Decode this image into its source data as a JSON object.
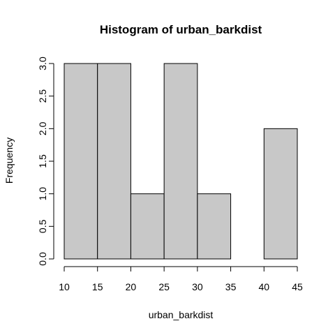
{
  "chart_data": {
    "type": "bar",
    "title": "Histogram of urban_barkdist",
    "xlabel": "urban_barkdist",
    "ylabel": "Frequency",
    "bins": [
      {
        "start": 10,
        "end": 15,
        "count": 3
      },
      {
        "start": 15,
        "end": 20,
        "count": 3
      },
      {
        "start": 20,
        "end": 25,
        "count": 1
      },
      {
        "start": 25,
        "end": 30,
        "count": 3
      },
      {
        "start": 30,
        "end": 35,
        "count": 1
      },
      {
        "start": 35,
        "end": 40,
        "count": 0
      },
      {
        "start": 40,
        "end": 45,
        "count": 2
      }
    ],
    "xlim": [
      10,
      45
    ],
    "ylim": [
      0,
      3
    ],
    "x_ticks": [
      "10",
      "15",
      "20",
      "25",
      "30",
      "35",
      "40",
      "45"
    ],
    "y_ticks": [
      "0.0",
      "0.5",
      "1.0",
      "1.5",
      "2.0",
      "2.5",
      "3.0"
    ],
    "grid": false,
    "bar_color": "#c8c8c8",
    "edge_color": "#000000"
  }
}
